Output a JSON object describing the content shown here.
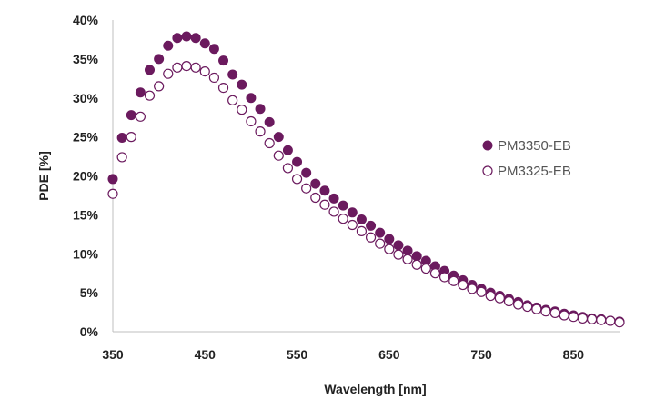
{
  "chart_data": {
    "type": "scatter",
    "title": "",
    "xlabel": "Wavelength [nm]",
    "ylabel": "PDE [%]",
    "xlim": [
      350,
      900
    ],
    "ylim": [
      0,
      40
    ],
    "x_ticks": [
      350,
      450,
      550,
      650,
      750,
      850
    ],
    "x_tick_labels": [
      "350",
      "450",
      "550",
      "650",
      "750",
      "850"
    ],
    "y_ticks": [
      0,
      5,
      10,
      15,
      20,
      25,
      30,
      35,
      40
    ],
    "y_tick_labels": [
      "0%",
      "5%",
      "10%",
      "15%",
      "20%",
      "25%",
      "30%",
      "35%",
      "40%"
    ],
    "grid": false,
    "legend_position": "right",
    "x": [
      350,
      360,
      370,
      380,
      390,
      400,
      410,
      420,
      430,
      440,
      450,
      460,
      470,
      480,
      490,
      500,
      510,
      520,
      530,
      540,
      550,
      560,
      570,
      580,
      590,
      600,
      610,
      620,
      630,
      640,
      650,
      660,
      670,
      680,
      690,
      700,
      710,
      720,
      730,
      740,
      750,
      760,
      770,
      780,
      790,
      800,
      810,
      820,
      830,
      840,
      850,
      860,
      870,
      880,
      890,
      900
    ],
    "series": [
      {
        "name": "PM3350-EB",
        "marker": "filled-circle",
        "color": "#6b1a5e",
        "values": [
          19.6,
          24.9,
          27.8,
          30.7,
          33.6,
          35.0,
          36.7,
          37.7,
          37.9,
          37.7,
          37.0,
          36.3,
          34.8,
          33.0,
          31.7,
          30.0,
          28.6,
          26.9,
          25.0,
          23.3,
          21.8,
          20.4,
          19.0,
          18.1,
          17.1,
          16.2,
          15.3,
          14.4,
          13.6,
          12.7,
          11.9,
          11.1,
          10.4,
          9.7,
          9.1,
          8.4,
          7.8,
          7.2,
          6.6,
          6.0,
          5.5,
          5.0,
          4.6,
          4.2,
          3.8,
          3.4,
          3.1,
          2.8,
          2.6,
          2.3,
          2.1,
          1.9,
          1.7,
          1.6,
          1.4,
          1.3
        ]
      },
      {
        "name": "PM3325-EB",
        "marker": "open-circle",
        "color": "#6b1a5e",
        "values": [
          17.7,
          22.4,
          25.0,
          27.6,
          30.3,
          31.5,
          33.1,
          33.9,
          34.1,
          33.9,
          33.4,
          32.6,
          31.3,
          29.7,
          28.5,
          27.0,
          25.7,
          24.2,
          22.6,
          21.0,
          19.6,
          18.4,
          17.2,
          16.3,
          15.4,
          14.5,
          13.7,
          12.9,
          12.1,
          11.3,
          10.6,
          9.9,
          9.3,
          8.6,
          8.1,
          7.5,
          7.0,
          6.5,
          6.0,
          5.5,
          5.1,
          4.6,
          4.3,
          3.9,
          3.5,
          3.2,
          2.9,
          2.6,
          2.4,
          2.1,
          1.9,
          1.7,
          1.6,
          1.5,
          1.4,
          1.2
        ]
      }
    ]
  }
}
